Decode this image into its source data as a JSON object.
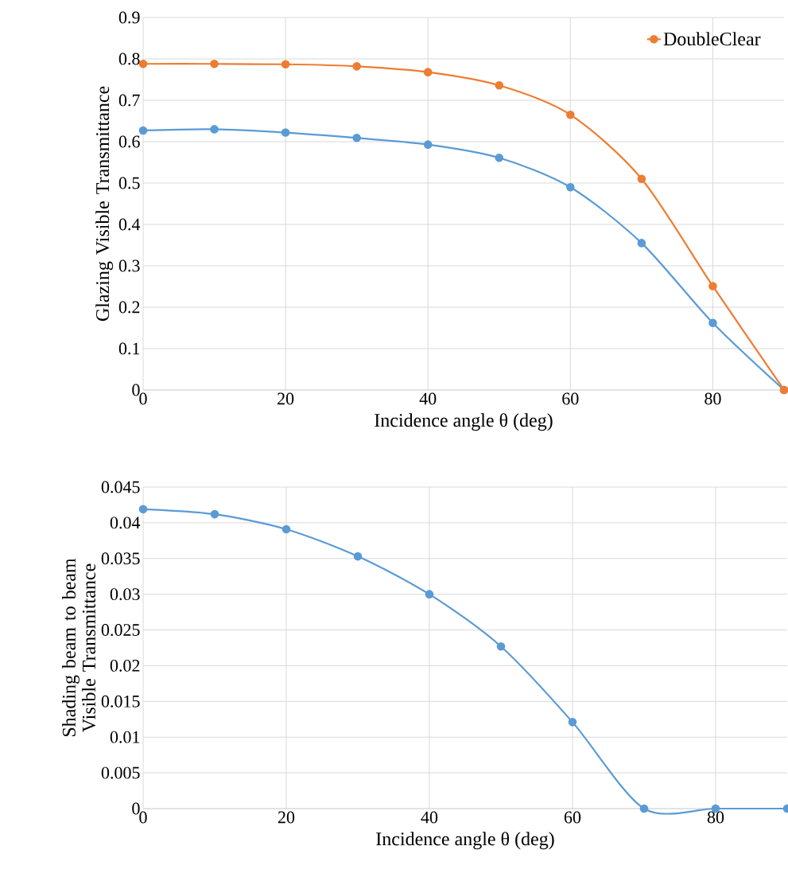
{
  "chart_data": [
    {
      "type": "line",
      "xlabel": "Incidence angle θ (deg)",
      "ylabel": "Glazing Visible Transmittance",
      "x": [
        0,
        10,
        20,
        30,
        40,
        50,
        60,
        70,
        80,
        90
      ],
      "series": [
        {
          "color": "#5b9bd5",
          "values": [
            0.627,
            0.63,
            0.622,
            0.609,
            0.593,
            0.561,
            0.49,
            0.355,
            0.162,
            0
          ]
        },
        {
          "name": "DoubleClear",
          "color": "#ed7d31",
          "values": [
            0.788,
            0.788,
            0.787,
            0.782,
            0.768,
            0.736,
            0.665,
            0.51,
            0.251,
            0
          ]
        }
      ],
      "xlim": [
        0,
        90
      ],
      "xticks": [
        0,
        20,
        40,
        60,
        80
      ],
      "ylim": [
        0,
        0.9
      ],
      "yticks": [
        0,
        0.1,
        0.2,
        0.3,
        0.4,
        0.5,
        0.6,
        0.7,
        0.8,
        0.9
      ],
      "grid": true,
      "marker": "circle",
      "legend": "top right"
    },
    {
      "type": "line",
      "xlabel": "Incidence angle θ (deg)",
      "ylabel": "Shading beam to beam Visible Transmittance",
      "x": [
        0,
        10,
        20,
        30,
        40,
        50,
        60,
        70,
        80,
        90
      ],
      "series": [
        {
          "color": "#5b9bd5",
          "values": [
            0.0419,
            0.0412,
            0.0391,
            0.0353,
            0.03,
            0.0227,
            0.0121,
            0,
            0,
            0
          ]
        }
      ],
      "xlim": [
        0,
        90
      ],
      "xticks": [
        0,
        20,
        40,
        60,
        80
      ],
      "ylim": [
        0,
        0.045
      ],
      "yticks": [
        0,
        0.005,
        0.01,
        0.015,
        0.02,
        0.025,
        0.03,
        0.035,
        0.04,
        0.045
      ],
      "grid": true,
      "marker": "circle"
    }
  ]
}
